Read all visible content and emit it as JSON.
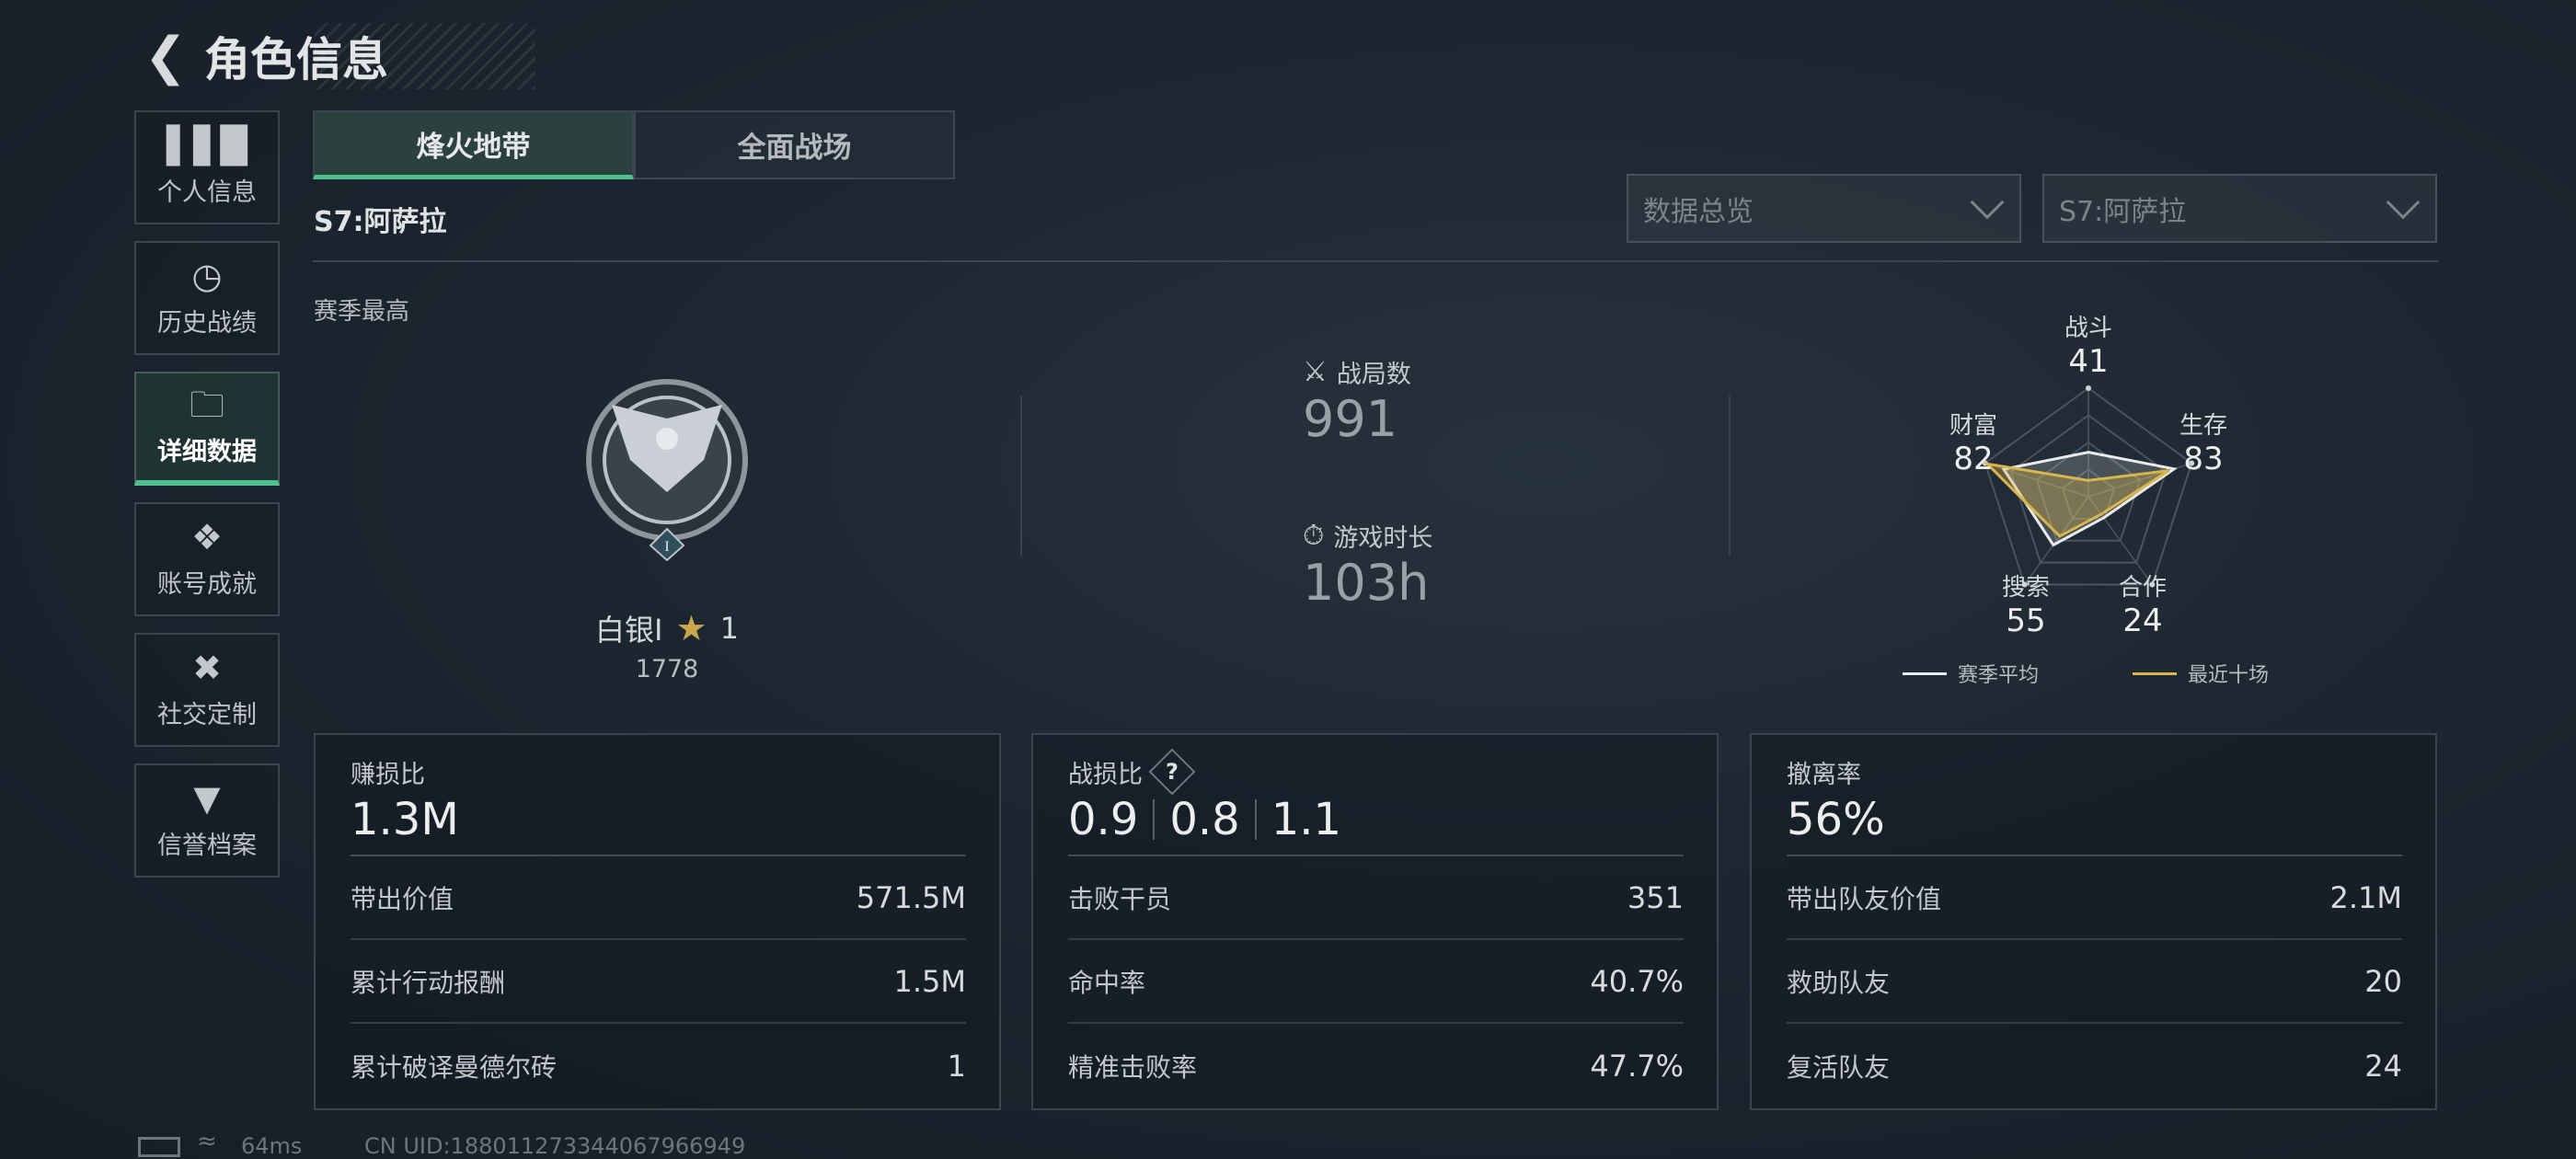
{
  "header": {
    "title": "角色信息",
    "back_icon": "back-arrow-icon"
  },
  "sidebar": {
    "items": [
      {
        "label": "个人信息",
        "icon": "bar-chart-icon",
        "active": false
      },
      {
        "label": "历史战绩",
        "icon": "history-clock-icon",
        "active": false
      },
      {
        "label": "详细数据",
        "icon": "folder-icon",
        "active": true
      },
      {
        "label": "账号成就",
        "icon": "achievement-icon",
        "active": false
      },
      {
        "label": "社交定制",
        "icon": "tools-icon",
        "active": false
      },
      {
        "label": "信誉档案",
        "icon": "credit-shield-icon",
        "active": false
      }
    ]
  },
  "tabs": [
    {
      "label": "烽火地带",
      "active": true
    },
    {
      "label": "全面战场",
      "active": false
    }
  ],
  "season_title": "S7:阿萨拉",
  "dropdowns": {
    "view": "数据总览",
    "season": "S7:阿萨拉"
  },
  "rank": {
    "section_label": "赛季最高",
    "name": "白银I",
    "stars": "1",
    "score": "1778"
  },
  "summary": {
    "matches_label": "战局数",
    "matches": "991",
    "playtime_label": "游戏时长",
    "playtime": "103h"
  },
  "chart_data": {
    "type": "radar",
    "axes": [
      "战斗",
      "生存",
      "合作",
      "搜索",
      "财富"
    ],
    "values": [
      "41",
      "83",
      "24",
      "55",
      "82"
    ],
    "series": [
      {
        "name": "赛季平均",
        "values": [
          41,
          83,
          24,
          55,
          82
        ],
        "color": "#e8eaec"
      },
      {
        "name": "最近十场",
        "values": [
          15,
          78,
          20,
          45,
          98
        ],
        "color": "#d9b54a"
      }
    ],
    "range": [
      0,
      100
    ]
  },
  "cards": [
    {
      "title": "赚损比",
      "value": "1.3M",
      "rows": [
        {
          "label": "带出价值",
          "value": "571.5M"
        },
        {
          "label": "累计行动报酬",
          "value": "1.5M"
        },
        {
          "label": "累计破译曼德尔砖",
          "value": "1"
        }
      ]
    },
    {
      "title": "战损比",
      "help": "?",
      "values": [
        "0.9",
        "0.8",
        "1.1"
      ],
      "rows": [
        {
          "label": "击败干员",
          "value": "351"
        },
        {
          "label": "命中率",
          "value": "40.7%"
        },
        {
          "label": "精准击败率",
          "value": "47.7%"
        }
      ]
    },
    {
      "title": "撤离率",
      "value": "56%",
      "rows": [
        {
          "label": "带出队友价值",
          "value": "2.1M"
        },
        {
          "label": "救助队友",
          "value": "20"
        },
        {
          "label": "复活队友",
          "value": "24"
        }
      ]
    }
  ],
  "status": {
    "ping": "64ms",
    "uid": "CN UID:18801127334406796694​9"
  },
  "colors": {
    "accent": "#4fc08d",
    "recent": "#d9b54a",
    "background": "#1c2630"
  }
}
